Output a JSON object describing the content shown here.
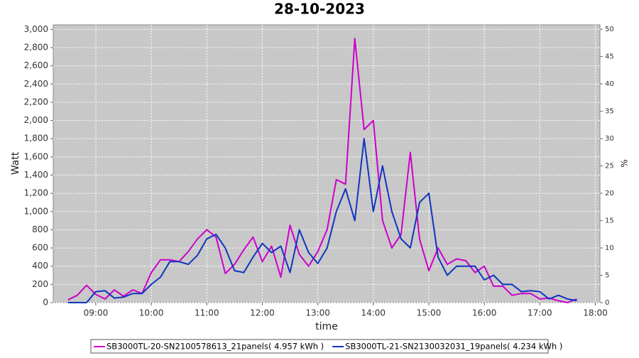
{
  "chart_data": {
    "type": "line",
    "title": "28-10-2023",
    "xlabel": "time",
    "ylabel": "Watt",
    "y2label": "%",
    "x": [
      500,
      510,
      520,
      530,
      540,
      550,
      560,
      570,
      580,
      590,
      600,
      610,
      620,
      630,
      640,
      650,
      660,
      670,
      680,
      690,
      700,
      710,
      720,
      730,
      740,
      750,
      760,
      770,
      780,
      790,
      800,
      810,
      820,
      830,
      840,
      850,
      860,
      870,
      880,
      890,
      900,
      910,
      920,
      930,
      940,
      950,
      960,
      970,
      980,
      990,
      1000,
      1010,
      1020,
      1030,
      1040,
      1050,
      1060,
      1070
    ],
    "series": [
      {
        "name": "SB3000TL-20-SN2100578613_21panels( 4.957 kWh )",
        "color": "#cc00cc",
        "values": [
          null,
          30,
          80,
          190,
          90,
          40,
          140,
          70,
          140,
          100,
          330,
          470,
          470,
          450,
          560,
          700,
          800,
          720,
          320,
          420,
          580,
          720,
          450,
          620,
          280,
          850,
          530,
          400,
          560,
          800,
          1350,
          1300,
          2900,
          1900,
          2000,
          900,
          600,
          750,
          1650,
          700,
          350,
          600,
          420,
          480,
          460,
          330,
          400,
          180,
          180,
          80,
          100,
          100,
          40,
          50,
          20,
          0,
          40,
          null
        ]
      },
      {
        "name": "SB3000TL-21-SN2130032031_19panels( 4.234 kWh )",
        "color": "#1035c0",
        "values": [
          null,
          0,
          0,
          0,
          120,
          130,
          50,
          60,
          100,
          100,
          200,
          280,
          450,
          450,
          420,
          520,
          700,
          750,
          600,
          350,
          330,
          500,
          650,
          550,
          620,
          330,
          800,
          550,
          430,
          600,
          1000,
          1250,
          900,
          1800,
          1000,
          1500,
          1000,
          700,
          600,
          1100,
          1200,
          500,
          300,
          400,
          400,
          400,
          250,
          300,
          200,
          200,
          120,
          130,
          120,
          40,
          80,
          40,
          20,
          null
        ]
      }
    ],
    "xlim": [
      494,
      1085
    ],
    "xticks": [
      {
        "value": 540,
        "label": "09:00"
      },
      {
        "value": 600,
        "label": "10:00"
      },
      {
        "value": 660,
        "label": "11:00"
      },
      {
        "value": 720,
        "label": "12:00"
      },
      {
        "value": 780,
        "label": "13:00"
      },
      {
        "value": 840,
        "label": "14:00"
      },
      {
        "value": 900,
        "label": "15:00"
      },
      {
        "value": 960,
        "label": "16:00"
      },
      {
        "value": 1020,
        "label": "17:00"
      },
      {
        "value": 1080,
        "label": "18:00"
      }
    ],
    "ylim": [
      0,
      3050
    ],
    "yticks": [
      0,
      200,
      400,
      600,
      800,
      {
        "value": 1000,
        "label": "1,000"
      },
      {
        "value": 1200,
        "label": "1,200"
      },
      {
        "value": 1400,
        "label": "1,400"
      },
      {
        "value": 1600,
        "label": "1,600"
      },
      {
        "value": 1800,
        "label": "1,800"
      },
      {
        "value": 2000,
        "label": "2,000"
      },
      {
        "value": 2200,
        "label": "2,200"
      },
      {
        "value": 2400,
        "label": "2,400"
      },
      {
        "value": 2600,
        "label": "2,600"
      },
      {
        "value": 2800,
        "label": "2,800"
      },
      {
        "value": 3000,
        "label": "3,000"
      }
    ],
    "y2lim": [
      0,
      50.8
    ],
    "y2ticks": [
      0,
      5,
      10,
      15,
      20,
      25,
      30,
      35,
      40,
      45,
      50
    ],
    "grid": true,
    "legend": "bottom"
  }
}
